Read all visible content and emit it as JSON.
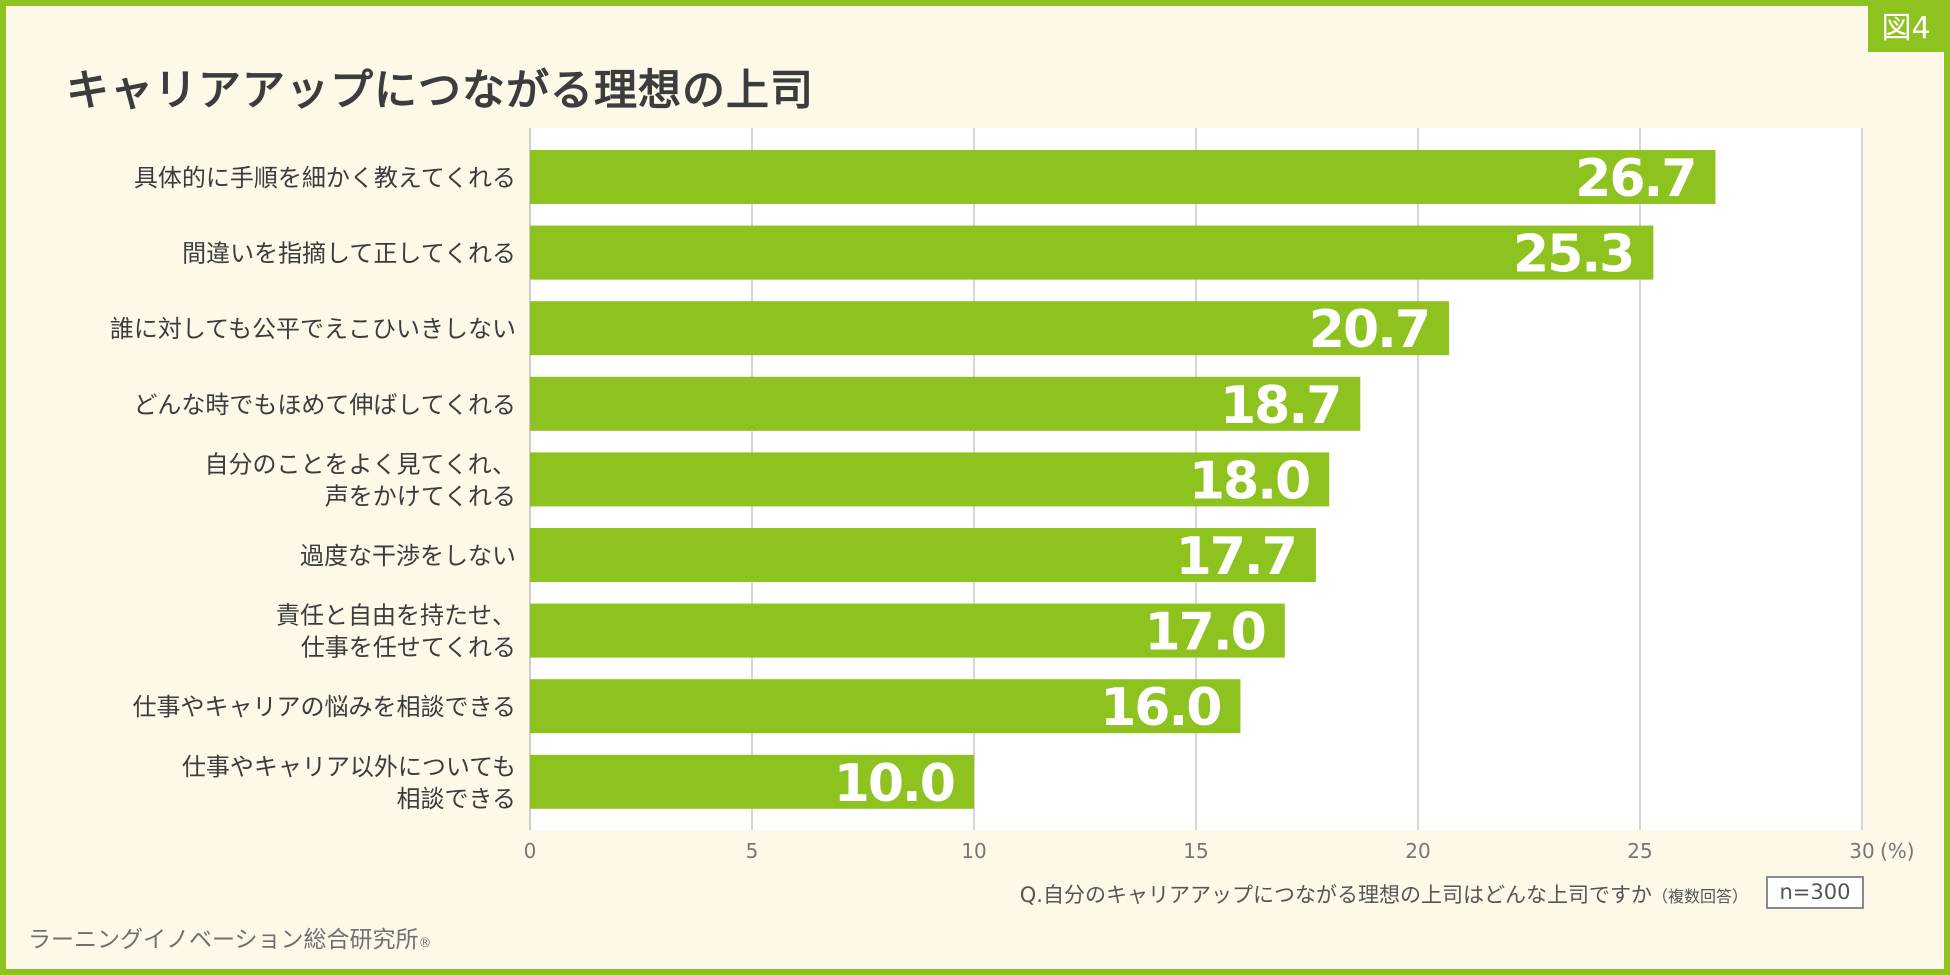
{
  "figure_badge": "図4",
  "question": "Q.自分のキャリアアップにつながる理想の上司はどんな上司ですか",
  "question_note": "（複数回答）",
  "sample_size": "n=300",
  "credit": "ラーニングイノベーション総合研究所",
  "credit_mark": "®",
  "colors": {
    "bar": "#8dc21f",
    "border": "#8dc21f",
    "background": "#fdf8e7",
    "plot_background": "#ffffff",
    "bar_label": "#ffffff"
  },
  "chart_data": {
    "type": "bar",
    "orientation": "horizontal",
    "title": "キャリアアップにつながる理想の上司",
    "categories": [
      [
        "具体的に手順を細かく教えてくれる"
      ],
      [
        "間違いを指摘して正してくれる"
      ],
      [
        "誰に対しても公平でえこひいきしない"
      ],
      [
        "どんな時でもほめて伸ばしてくれる"
      ],
      [
        "自分のことをよく見てくれ、",
        "声をかけてくれる"
      ],
      [
        "過度な干渉をしない"
      ],
      [
        "責任と自由を持たせ、",
        "仕事を任せてくれる"
      ],
      [
        "仕事やキャリアの悩みを相談できる"
      ],
      [
        "仕事やキャリア以外についても",
        "相談できる"
      ]
    ],
    "values": [
      26.7,
      25.3,
      20.7,
      18.7,
      18.0,
      17.7,
      17.0,
      16.0,
      10.0
    ],
    "value_labels": [
      "26.7",
      "25.3",
      "20.7",
      "18.7",
      "18.0",
      "17.7",
      "17.0",
      "16.0",
      "10.0"
    ],
    "x_ticks": [
      "0",
      "5",
      "10",
      "15",
      "20",
      "25",
      "30"
    ],
    "x_unit": "(%)",
    "xlim": [
      0,
      30
    ],
    "grid": true,
    "legend": "none"
  }
}
